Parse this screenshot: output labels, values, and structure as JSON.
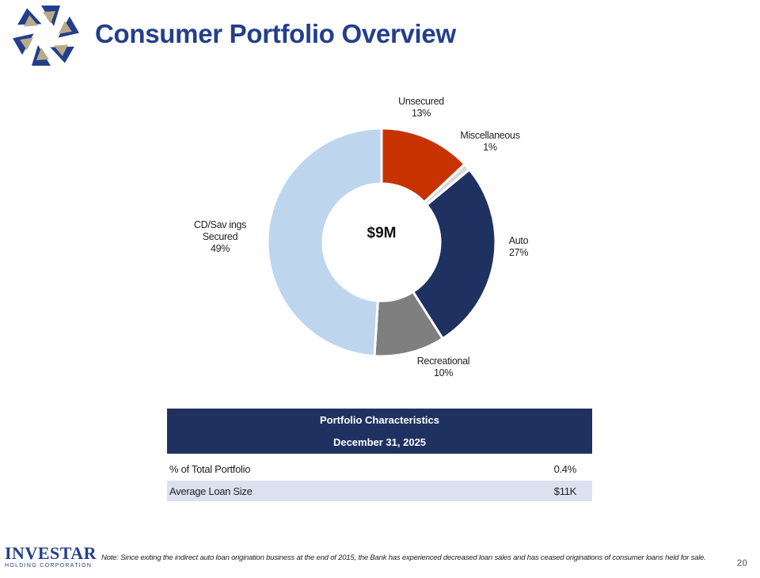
{
  "header": {
    "title": "Consumer Portfolio Overview"
  },
  "chart_data": {
    "type": "pie",
    "style": "donut",
    "center_label": "$9M",
    "slices": [
      {
        "name": "Unsecured",
        "label_lines": [
          "Unsecured"
        ],
        "value": 13,
        "pct_label": "13%",
        "color": "#c83200"
      },
      {
        "name": "Miscellaneous",
        "label_lines": [
          "Miscellaneous"
        ],
        "value": 1,
        "pct_label": "1%",
        "color": "#d9d9d9"
      },
      {
        "name": "Auto",
        "label_lines": [
          "Auto"
        ],
        "value": 27,
        "pct_label": "27%",
        "color": "#1f3161"
      },
      {
        "name": "Recreational",
        "label_lines": [
          "Recreational"
        ],
        "value": 10,
        "pct_label": "10%",
        "color": "#7f7f7f"
      },
      {
        "name": "CD/Savings Secured",
        "label_lines": [
          "CD/Sav ings",
          "Secured"
        ],
        "value": 49,
        "pct_label": "49%",
        "color": "#bdd6ee"
      }
    ]
  },
  "table": {
    "title": "Portfolio Characteristics",
    "subtitle": "December 31, 2025",
    "rows": [
      {
        "label": "% of Total Portfolio",
        "value": "0.4%"
      },
      {
        "label": "Average Loan Size",
        "value": "$11K"
      }
    ]
  },
  "footer": {
    "brand": "INVESTAR",
    "brand_sub": "HOLDING CORPORATION",
    "note": "Note: Since exiting the indirect auto loan origination business at the end of 2015, the Bank has experienced decreased loan sales and has ceased originations of consumer loans held for sale.",
    "page_number": "20"
  }
}
